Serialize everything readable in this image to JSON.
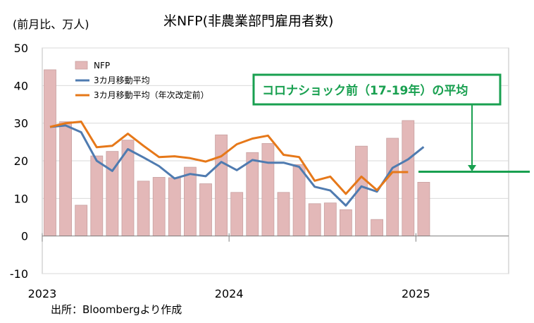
{
  "chart_data": {
    "type": "bar",
    "title": "米NFP(非農業部門雇用者数)",
    "unit_label": "(前月比、万人)",
    "source": "出所：Bloombergより作成",
    "ylim": [
      -10,
      50
    ],
    "yticks": [
      "50",
      "40",
      "30",
      "20",
      "10",
      "0",
      "-10"
    ],
    "ytick_values": [
      50,
      40,
      30,
      20,
      10,
      0,
      -10
    ],
    "xticks": [
      {
        "label": "2023",
        "index": 0
      },
      {
        "label": "2024",
        "index": 12
      },
      {
        "label": "2025",
        "index": 24
      }
    ],
    "grid": true,
    "legend_position": "top-left",
    "categories": [
      "2023-01",
      "2023-02",
      "2023-03",
      "2023-04",
      "2023-05",
      "2023-06",
      "2023-07",
      "2023-08",
      "2023-09",
      "2023-10",
      "2023-11",
      "2023-12",
      "2024-01",
      "2024-02",
      "2024-03",
      "2024-04",
      "2024-05",
      "2024-06",
      "2024-07",
      "2024-08",
      "2024-09",
      "2024-10",
      "2024-11",
      "2024-12",
      "2025-01"
    ],
    "series": [
      {
        "name": "NFP",
        "kind": "bar",
        "color": "#e3b8b8",
        "values": [
          44.2,
          30.4,
          8.2,
          21.3,
          22.5,
          25.5,
          14.6,
          15.6,
          15.5,
          18.3,
          13.9,
          26.9,
          11.6,
          22.2,
          24.6,
          11.6,
          19.0,
          8.6,
          8.8,
          7.0,
          23.9,
          4.4,
          26.0,
          30.7,
          14.3
        ]
      },
      {
        "name": "3カ月移動平均",
        "kind": "line",
        "color": "#4f7bb0",
        "values": [
          29.0,
          29.4,
          27.6,
          20.0,
          17.3,
          23.1,
          20.9,
          18.6,
          15.3,
          16.5,
          15.9,
          19.7,
          17.5,
          20.2,
          19.5,
          19.5,
          18.4,
          13.1,
          12.1,
          8.1,
          13.2,
          11.8,
          18.1,
          20.4,
          23.7
        ]
      },
      {
        "name": "3カ月移動平均（年次改定前）",
        "kind": "line",
        "color": "#e67819",
        "values": [
          29.0,
          30.0,
          30.4,
          23.6,
          24.0,
          27.2,
          24.0,
          21.0,
          21.2,
          20.7,
          19.8,
          21.2,
          24.4,
          25.9,
          26.7,
          21.6,
          21.0,
          14.7,
          15.8,
          11.2,
          15.8,
          12.2,
          17.0,
          17.0,
          null
        ]
      }
    ],
    "annotation": {
      "text": "コロナショック前（17-19年）の平均",
      "value": 17.1,
      "color": "#19a050"
    }
  }
}
